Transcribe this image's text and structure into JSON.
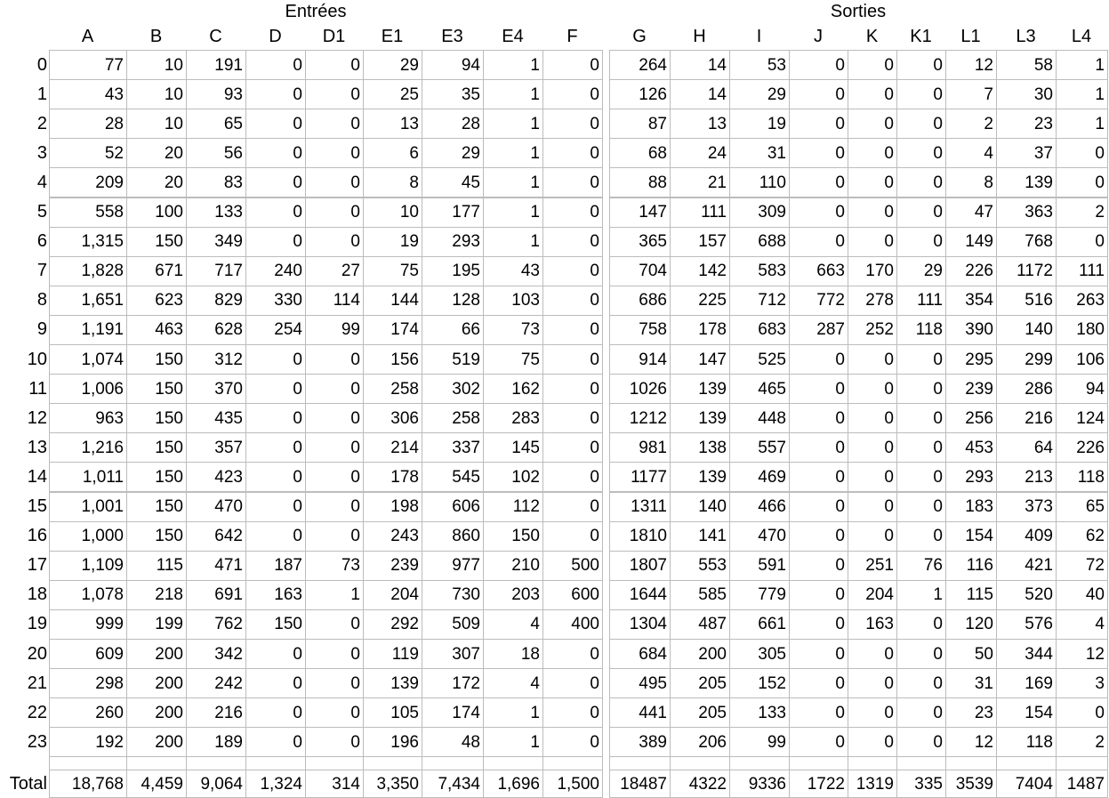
{
  "group_headers": {
    "left": "Entrées",
    "right": "Sorties"
  },
  "columns": [
    "A",
    "B",
    "C",
    "D",
    "D1",
    "E1",
    "E3",
    "E4",
    "F",
    "G",
    "H",
    "I",
    "J",
    "K",
    "K1",
    "L1",
    "L3",
    "L4"
  ],
  "rows": [
    {
      "label": "0",
      "values": [
        "77",
        "10",
        "191",
        "0",
        "0",
        "29",
        "94",
        "1",
        "0",
        "264",
        "14",
        "53",
        "0",
        "0",
        "0",
        "12",
        "58",
        "1"
      ]
    },
    {
      "label": "1",
      "values": [
        "43",
        "10",
        "93",
        "0",
        "0",
        "25",
        "35",
        "1",
        "0",
        "126",
        "14",
        "29",
        "0",
        "0",
        "0",
        "7",
        "30",
        "1"
      ]
    },
    {
      "label": "2",
      "values": [
        "28",
        "10",
        "65",
        "0",
        "0",
        "13",
        "28",
        "1",
        "0",
        "87",
        "13",
        "19",
        "0",
        "0",
        "0",
        "2",
        "23",
        "1"
      ]
    },
    {
      "label": "3",
      "values": [
        "52",
        "20",
        "56",
        "0",
        "0",
        "6",
        "29",
        "1",
        "0",
        "68",
        "24",
        "31",
        "0",
        "0",
        "0",
        "4",
        "37",
        "0"
      ]
    },
    {
      "label": "4",
      "values": [
        "209",
        "20",
        "83",
        "0",
        "0",
        "8",
        "45",
        "1",
        "0",
        "88",
        "21",
        "110",
        "0",
        "0",
        "0",
        "8",
        "139",
        "0"
      ]
    },
    {
      "label": "5",
      "values": [
        "558",
        "100",
        "133",
        "0",
        "0",
        "10",
        "177",
        "1",
        "0",
        "147",
        "111",
        "309",
        "0",
        "0",
        "0",
        "47",
        "363",
        "2"
      ]
    },
    {
      "label": "6",
      "values": [
        "1,315",
        "150",
        "349",
        "0",
        "0",
        "19",
        "293",
        "1",
        "0",
        "365",
        "157",
        "688",
        "0",
        "0",
        "0",
        "149",
        "768",
        "0"
      ]
    },
    {
      "label": "7",
      "values": [
        "1,828",
        "671",
        "717",
        "240",
        "27",
        "75",
        "195",
        "43",
        "0",
        "704",
        "142",
        "583",
        "663",
        "170",
        "29",
        "226",
        "1172",
        "111"
      ]
    },
    {
      "label": "8",
      "values": [
        "1,651",
        "623",
        "829",
        "330",
        "114",
        "144",
        "128",
        "103",
        "0",
        "686",
        "225",
        "712",
        "772",
        "278",
        "111",
        "354",
        "516",
        "263"
      ]
    },
    {
      "label": "9",
      "values": [
        "1,191",
        "463",
        "628",
        "254",
        "99",
        "174",
        "66",
        "73",
        "0",
        "758",
        "178",
        "683",
        "287",
        "252",
        "118",
        "390",
        "140",
        "180"
      ]
    },
    {
      "label": "10",
      "values": [
        "1,074",
        "150",
        "312",
        "0",
        "0",
        "156",
        "519",
        "75",
        "0",
        "914",
        "147",
        "525",
        "0",
        "0",
        "0",
        "295",
        "299",
        "106"
      ]
    },
    {
      "label": "11",
      "values": [
        "1,006",
        "150",
        "370",
        "0",
        "0",
        "258",
        "302",
        "162",
        "0",
        "1026",
        "139",
        "465",
        "0",
        "0",
        "0",
        "239",
        "286",
        "94"
      ]
    },
    {
      "label": "12",
      "values": [
        "963",
        "150",
        "435",
        "0",
        "0",
        "306",
        "258",
        "283",
        "0",
        "1212",
        "139",
        "448",
        "0",
        "0",
        "0",
        "256",
        "216",
        "124"
      ]
    },
    {
      "label": "13",
      "values": [
        "1,216",
        "150",
        "357",
        "0",
        "0",
        "214",
        "337",
        "145",
        "0",
        "981",
        "138",
        "557",
        "0",
        "0",
        "0",
        "453",
        "64",
        "226"
      ]
    },
    {
      "label": "14",
      "values": [
        "1,011",
        "150",
        "423",
        "0",
        "0",
        "178",
        "545",
        "102",
        "0",
        "1177",
        "139",
        "469",
        "0",
        "0",
        "0",
        "293",
        "213",
        "118"
      ]
    },
    {
      "label": "15",
      "values": [
        "1,001",
        "150",
        "470",
        "0",
        "0",
        "198",
        "606",
        "112",
        "0",
        "1311",
        "140",
        "466",
        "0",
        "0",
        "0",
        "183",
        "373",
        "65"
      ]
    },
    {
      "label": "16",
      "values": [
        "1,000",
        "150",
        "642",
        "0",
        "0",
        "243",
        "860",
        "150",
        "0",
        "1810",
        "141",
        "470",
        "0",
        "0",
        "0",
        "154",
        "409",
        "62"
      ]
    },
    {
      "label": "17",
      "values": [
        "1,109",
        "115",
        "471",
        "187",
        "73",
        "239",
        "977",
        "210",
        "500",
        "1807",
        "553",
        "591",
        "0",
        "251",
        "76",
        "116",
        "421",
        "72"
      ]
    },
    {
      "label": "18",
      "values": [
        "1,078",
        "218",
        "691",
        "163",
        "1",
        "204",
        "730",
        "203",
        "600",
        "1644",
        "585",
        "779",
        "0",
        "204",
        "1",
        "115",
        "520",
        "40"
      ]
    },
    {
      "label": "19",
      "values": [
        "999",
        "199",
        "762",
        "150",
        "0",
        "292",
        "509",
        "4",
        "400",
        "1304",
        "487",
        "661",
        "0",
        "163",
        "0",
        "120",
        "576",
        "4"
      ]
    },
    {
      "label": "20",
      "values": [
        "609",
        "200",
        "342",
        "0",
        "0",
        "119",
        "307",
        "18",
        "0",
        "684",
        "200",
        "305",
        "0",
        "0",
        "0",
        "50",
        "344",
        "12"
      ]
    },
    {
      "label": "21",
      "values": [
        "298",
        "200",
        "242",
        "0",
        "0",
        "139",
        "172",
        "4",
        "0",
        "495",
        "205",
        "152",
        "0",
        "0",
        "0",
        "31",
        "169",
        "3"
      ]
    },
    {
      "label": "22",
      "values": [
        "260",
        "200",
        "216",
        "0",
        "0",
        "105",
        "174",
        "1",
        "0",
        "441",
        "205",
        "133",
        "0",
        "0",
        "0",
        "23",
        "154",
        "0"
      ]
    },
    {
      "label": "23",
      "values": [
        "192",
        "200",
        "189",
        "0",
        "0",
        "196",
        "48",
        "1",
        "0",
        "389",
        "206",
        "99",
        "0",
        "0",
        "0",
        "12",
        "118",
        "2"
      ]
    }
  ],
  "total": {
    "label": "Total",
    "values": [
      "18,768",
      "4,459",
      "9,064",
      "1,324",
      "314",
      "3,350",
      "7,434",
      "1,696",
      "1,500",
      "18487",
      "4322",
      "9336",
      "1722",
      "1319",
      "335",
      "3539",
      "7404",
      "1487"
    ]
  }
}
